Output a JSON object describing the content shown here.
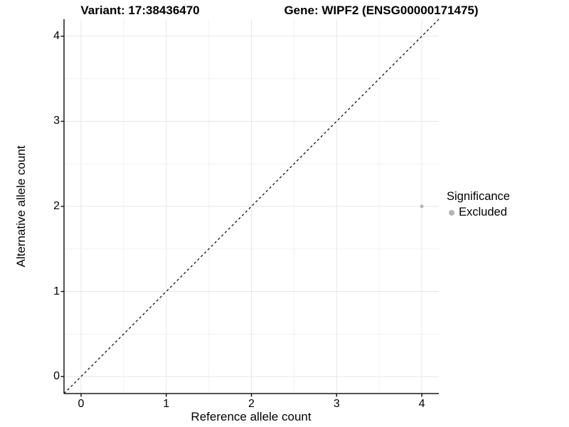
{
  "figure": {
    "title_left": "Variant: 17:38436470",
    "title_right": "Gene: WIPF2 (ENSG00000171475)"
  },
  "chart_data": {
    "type": "scatter",
    "title_left": "Variant: 17:38436470",
    "title_right": "Gene: WIPF2 (ENSG00000171475)",
    "xlabel": "Reference allele count",
    "ylabel": "Alternative allele count",
    "xlim": [
      -0.2,
      4.2
    ],
    "ylim": [
      -0.2,
      4.2
    ],
    "x_ticks": [
      0,
      1,
      2,
      3,
      4
    ],
    "y_ticks": [
      0,
      1,
      2,
      3,
      4
    ],
    "minor_grid_step": 0.5,
    "grid": true,
    "points": [
      {
        "x": 4,
        "y": 2,
        "series": "Excluded"
      }
    ],
    "reference_line": {
      "type": "identity",
      "slope": 1,
      "intercept": 0,
      "style": "dashed"
    },
    "legend": {
      "title": "Significance",
      "position": "right",
      "entries": [
        {
          "label": "Excluded",
          "color": "#b5b5b5"
        }
      ]
    },
    "colors": {
      "point_excluded": "#b5b5b5",
      "grid_major": "#e6e6e6",
      "grid_minor": "#f1f1f1",
      "axis_line": "#1a1a1a",
      "reference_line": "#000000",
      "background": "#ffffff"
    }
  }
}
